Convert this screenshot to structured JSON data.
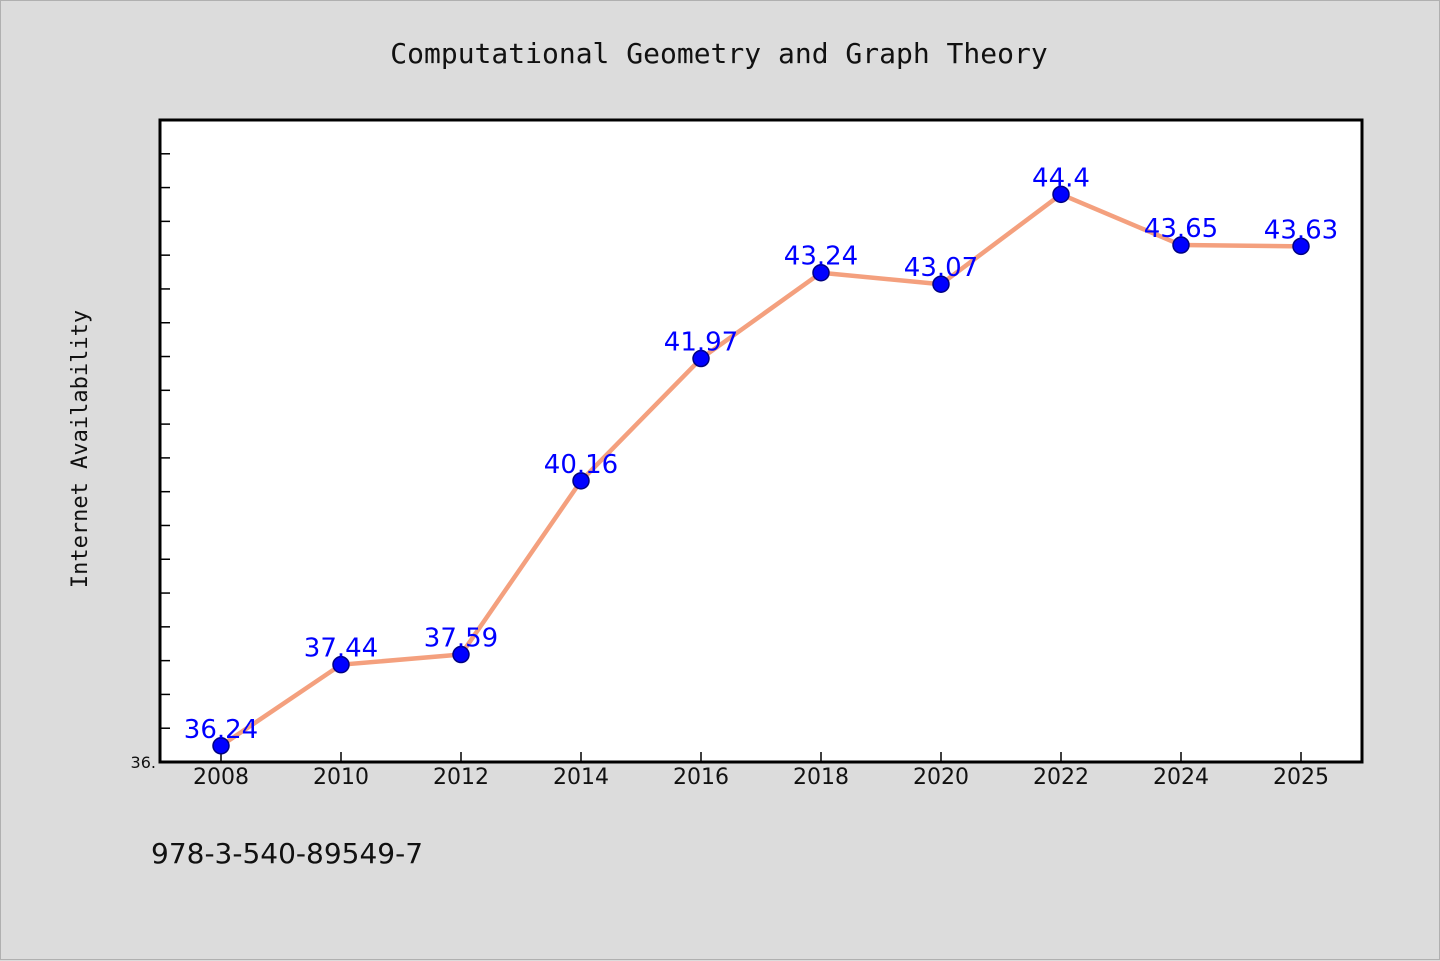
{
  "chart_data": {
    "type": "line",
    "title": "Computational Geometry and Graph Theory",
    "xlabel": "",
    "ylabel": "Internet Availability",
    "categories": [
      "2008",
      "2010",
      "2012",
      "2014",
      "2016",
      "2018",
      "2020",
      "2022",
      "2024",
      "2025"
    ],
    "series": [
      {
        "values": [
          36.24,
          37.44,
          37.59,
          40.16,
          41.97,
          43.24,
          43.07,
          44.4,
          43.65,
          43.63
        ],
        "labels": [
          "36.24",
          "37.44",
          "37.59",
          "40.16",
          "41.97",
          "43.24",
          "43.07",
          "44.4",
          "43.65",
          "43.63"
        ]
      }
    ],
    "ylim": [
      36.0,
      45.5
    ],
    "yticks": [
      {
        "value": 36.0,
        "label": "36."
      }
    ],
    "grid": false,
    "legend": "none",
    "colors": {
      "line": "#f4a07e",
      "marker": "#0000ff",
      "marker_edge": "#000080",
      "label": "#0000ff",
      "axes_background": "#ffffff",
      "figure_background": "#dcdcdc"
    }
  },
  "footer": {
    "isbn": "978-3-540-89549-7"
  }
}
